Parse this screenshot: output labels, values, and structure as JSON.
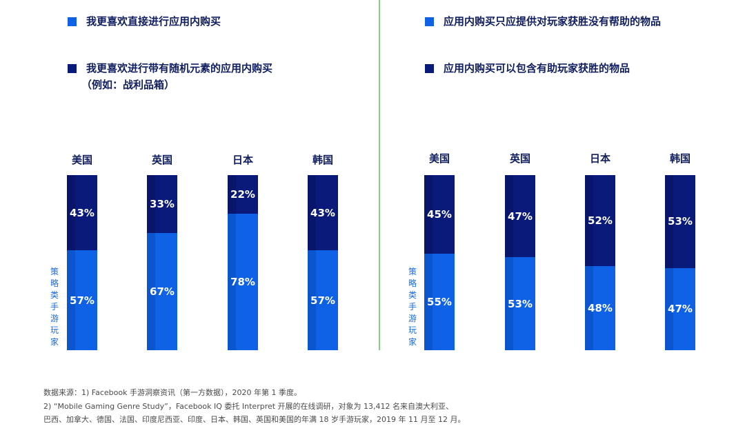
{
  "legend": {
    "left": [
      {
        "label": "我更喜欢直接进行应用内购买",
        "color": "#0f62e6"
      },
      {
        "label": "我更喜欢进行带有随机元素的应用内购买",
        "label2": "（例如：战利品箱）",
        "color": "#0a1a7a"
      }
    ],
    "right": [
      {
        "label": "应用内购买只应提供对玩家获胜没有帮助的物品",
        "color": "#0f62e6"
      },
      {
        "label": "应用内购买可以包含有助玩家获胜的物品",
        "color": "#0a1a7a"
      }
    ]
  },
  "side_label": "策略类手游玩家",
  "footnotes": {
    "line1": "数据来源：1) Facebook 手游洞察资讯（第一方数据），2020 年第 1 季度。",
    "line2": "2) “Mobile Gaming Genre Study”，Facebook IQ 委托 Interpret 开展的在线调研，对象为 13,412 名来自澳大利亚、",
    "line3": "巴西、加拿大、德国、法国、印度尼西亚、印度、日本、韩国、英国和美国的年满 18 岁手游玩家，2019 年 11 月至 12 月。"
  },
  "chart_data": [
    {
      "type": "bar",
      "stacked": true,
      "categories": [
        "美国",
        "英国",
        "日本",
        "韩国"
      ],
      "series": [
        {
          "name": "我更喜欢直接进行应用内购买",
          "values": [
            57,
            67,
            78,
            57
          ],
          "labels": [
            "57%",
            "67%",
            "78%",
            "57%"
          ]
        },
        {
          "name": "我更喜欢进行带有随机元素的应用内购买（例如：战利品箱）",
          "values": [
            43,
            33,
            22,
            43
          ],
          "labels": [
            "43%",
            "33%",
            "22%",
            "43%"
          ]
        }
      ],
      "ylim": [
        0,
        100
      ]
    },
    {
      "type": "bar",
      "stacked": true,
      "categories": [
        "美国",
        "英国",
        "日本",
        "韩国"
      ],
      "series": [
        {
          "name": "应用内购买只应提供对玩家获胜没有帮助的物品",
          "values": [
            55,
            53,
            48,
            47
          ],
          "labels": [
            "55%",
            "53%",
            "48%",
            "47%"
          ]
        },
        {
          "name": "应用内购买可以包含有助玩家获胜的物品",
          "values": [
            45,
            47,
            52,
            53
          ],
          "labels": [
            "45%",
            "47%",
            "52%",
            "53%"
          ]
        }
      ],
      "ylim": [
        0,
        100
      ]
    }
  ],
  "colors": {
    "light": "#0f62e6",
    "light_edge": "#0b55cf",
    "dark": "#0a1a7a",
    "dark_edge": "#08156a",
    "label": "#0f1d5e"
  }
}
